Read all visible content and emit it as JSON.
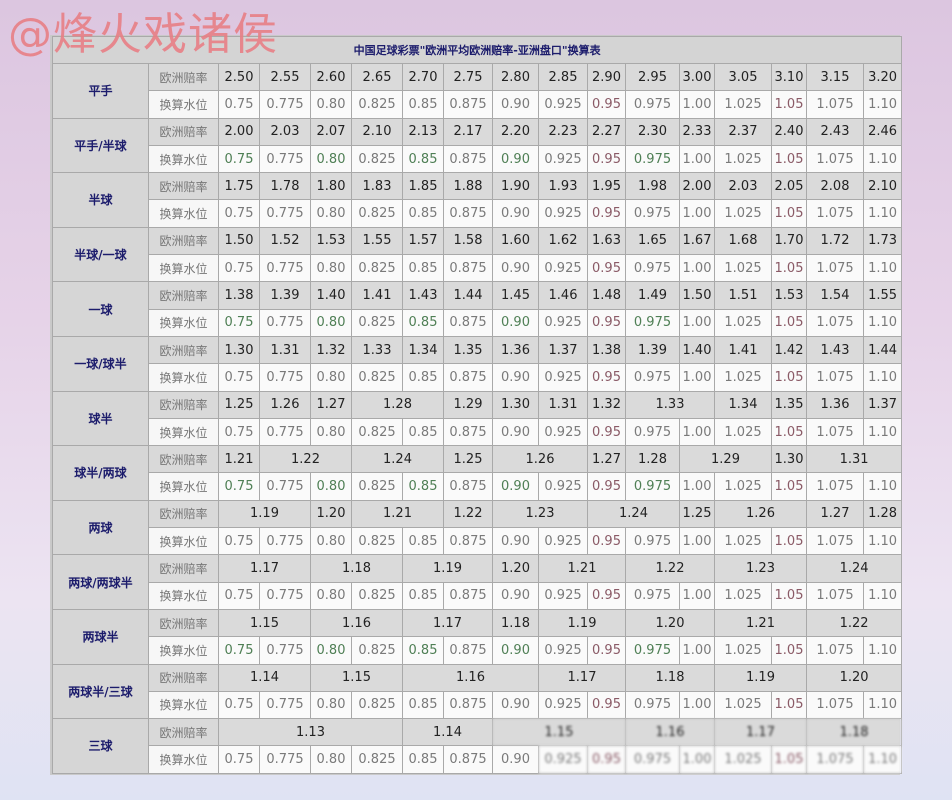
{
  "watermark": "@烽火戏诸侯",
  "title": "中国足球彩票\"欧洲平均欧洲赔率-亚洲盘口\"换算表",
  "row_labels": {
    "odds": "欧洲赔率",
    "water": "换算水位"
  },
  "groups": [
    {
      "label": "平手",
      "odds": [
        [
          "2.50",
          1
        ],
        [
          "2.55",
          1
        ],
        [
          "2.60",
          1
        ],
        [
          "2.65",
          1
        ],
        [
          "2.70",
          1
        ],
        [
          "2.75",
          1
        ],
        [
          "2.80",
          1
        ],
        [
          "2.85",
          1
        ],
        [
          "2.90",
          1
        ],
        [
          "2.95",
          1
        ],
        [
          "3.00",
          1
        ],
        [
          "3.05",
          1
        ],
        [
          "3.10",
          1
        ],
        [
          "3.15",
          1
        ],
        [
          "3.20",
          1
        ]
      ],
      "water": [
        "0.75",
        "0.775",
        "0.80",
        "0.825",
        "0.85",
        "0.875",
        "0.90",
        "0.925",
        "0.95",
        "0.975",
        "1.00",
        "1.025",
        "1.05",
        "1.075",
        "1.10"
      ]
    },
    {
      "label": "平手/半球",
      "odds": [
        [
          "2.00",
          1
        ],
        [
          "2.03",
          1
        ],
        [
          "2.07",
          1
        ],
        [
          "2.10",
          1
        ],
        [
          "2.13",
          1
        ],
        [
          "2.17",
          1
        ],
        [
          "2.20",
          1
        ],
        [
          "2.23",
          1
        ],
        [
          "2.27",
          1
        ],
        [
          "2.30",
          1
        ],
        [
          "2.33",
          1
        ],
        [
          "2.37",
          1
        ],
        [
          "2.40",
          1
        ],
        [
          "2.43",
          1
        ],
        [
          "2.46",
          1
        ]
      ],
      "water": [
        "0.75",
        "0.775",
        "0.80",
        "0.825",
        "0.85",
        "0.875",
        "0.90",
        "0.925",
        "0.95",
        "0.975",
        "1.00",
        "1.025",
        "1.05",
        "1.075",
        "1.10"
      ]
    },
    {
      "label": "半球",
      "odds": [
        [
          "1.75",
          1
        ],
        [
          "1.78",
          1
        ],
        [
          "1.80",
          1
        ],
        [
          "1.83",
          1
        ],
        [
          "1.85",
          1
        ],
        [
          "1.88",
          1
        ],
        [
          "1.90",
          1
        ],
        [
          "1.93",
          1
        ],
        [
          "1.95",
          1
        ],
        [
          "1.98",
          1
        ],
        [
          "2.00",
          1
        ],
        [
          "2.03",
          1
        ],
        [
          "2.05",
          1
        ],
        [
          "2.08",
          1
        ],
        [
          "2.10",
          1
        ]
      ],
      "water": [
        "0.75",
        "0.775",
        "0.80",
        "0.825",
        "0.85",
        "0.875",
        "0.90",
        "0.925",
        "0.95",
        "0.975",
        "1.00",
        "1.025",
        "1.05",
        "1.075",
        "1.10"
      ]
    },
    {
      "label": "半球/一球",
      "odds": [
        [
          "1.50",
          1
        ],
        [
          "1.52",
          1
        ],
        [
          "1.53",
          1
        ],
        [
          "1.55",
          1
        ],
        [
          "1.57",
          1
        ],
        [
          "1.58",
          1
        ],
        [
          "1.60",
          1
        ],
        [
          "1.62",
          1
        ],
        [
          "1.63",
          1
        ],
        [
          "1.65",
          1
        ],
        [
          "1.67",
          1
        ],
        [
          "1.68",
          1
        ],
        [
          "1.70",
          1
        ],
        [
          "1.72",
          1
        ],
        [
          "1.73",
          1
        ]
      ],
      "water": [
        "0.75",
        "0.775",
        "0.80",
        "0.825",
        "0.85",
        "0.875",
        "0.90",
        "0.925",
        "0.95",
        "0.975",
        "1.00",
        "1.025",
        "1.05",
        "1.075",
        "1.10"
      ]
    },
    {
      "label": "一球",
      "odds": [
        [
          "1.38",
          1
        ],
        [
          "1.39",
          1
        ],
        [
          "1.40",
          1
        ],
        [
          "1.41",
          1
        ],
        [
          "1.43",
          1
        ],
        [
          "1.44",
          1
        ],
        [
          "1.45",
          1
        ],
        [
          "1.46",
          1
        ],
        [
          "1.48",
          1
        ],
        [
          "1.49",
          1
        ],
        [
          "1.50",
          1
        ],
        [
          "1.51",
          1
        ],
        [
          "1.53",
          1
        ],
        [
          "1.54",
          1
        ],
        [
          "1.55",
          1
        ]
      ],
      "water": [
        "0.75",
        "0.775",
        "0.80",
        "0.825",
        "0.85",
        "0.875",
        "0.90",
        "0.925",
        "0.95",
        "0.975",
        "1.00",
        "1.025",
        "1.05",
        "1.075",
        "1.10"
      ]
    },
    {
      "label": "一球/球半",
      "odds": [
        [
          "1.30",
          1
        ],
        [
          "1.31",
          1
        ],
        [
          "1.32",
          1
        ],
        [
          "1.33",
          1
        ],
        [
          "1.34",
          1
        ],
        [
          "1.35",
          1
        ],
        [
          "1.36",
          1
        ],
        [
          "1.37",
          1
        ],
        [
          "1.38",
          1
        ],
        [
          "1.39",
          1
        ],
        [
          "1.40",
          1
        ],
        [
          "1.41",
          1
        ],
        [
          "1.42",
          1
        ],
        [
          "1.43",
          1
        ],
        [
          "1.44",
          1
        ]
      ],
      "water": [
        "0.75",
        "0.775",
        "0.80",
        "0.825",
        "0.85",
        "0.875",
        "0.90",
        "0.925",
        "0.95",
        "0.975",
        "1.00",
        "1.025",
        "1.05",
        "1.075",
        "1.10"
      ]
    },
    {
      "label": "球半",
      "odds": [
        [
          "1.25",
          1
        ],
        [
          "1.26",
          1
        ],
        [
          "1.27",
          1
        ],
        [
          "1.28",
          2
        ],
        [
          "1.29",
          1
        ],
        [
          "1.30",
          1
        ],
        [
          "1.31",
          1
        ],
        [
          "1.32",
          1
        ],
        [
          "1.33",
          2
        ],
        [
          "1.34",
          1
        ],
        [
          "1.35",
          1
        ],
        [
          "1.36",
          1
        ],
        [
          "1.37",
          1
        ]
      ],
      "water": [
        "0.75",
        "0.775",
        "0.80",
        "0.825",
        "0.85",
        "0.875",
        "0.90",
        "0.925",
        "0.95",
        "0.975",
        "1.00",
        "1.025",
        "1.05",
        "1.075",
        "1.10"
      ]
    },
    {
      "label": "球半/两球",
      "odds": [
        [
          "1.21",
          1
        ],
        [
          "1.22",
          2
        ],
        [
          "1.24",
          2
        ],
        [
          "1.25",
          1
        ],
        [
          "1.26",
          2
        ],
        [
          "1.27",
          1
        ],
        [
          "1.28",
          1
        ],
        [
          "1.29",
          2
        ],
        [
          "1.30",
          1
        ],
        [
          "1.31",
          2
        ]
      ],
      "water": [
        "0.75",
        "0.775",
        "0.80",
        "0.825",
        "0.85",
        "0.875",
        "0.90",
        "0.925",
        "0.95",
        "0.975",
        "1.00",
        "1.025",
        "1.05",
        "1.075",
        "1.10"
      ]
    },
    {
      "label": "两球",
      "odds": [
        [
          "1.19",
          2
        ],
        [
          "1.20",
          1
        ],
        [
          "1.21",
          2
        ],
        [
          "1.22",
          1
        ],
        [
          "1.23",
          2
        ],
        [
          "1.24",
          2
        ],
        [
          "1.25",
          1
        ],
        [
          "1.26",
          2
        ],
        [
          "1.27",
          1
        ],
        [
          "1.28",
          1
        ]
      ],
      "water": [
        "0.75",
        "0.775",
        "0.80",
        "0.825",
        "0.85",
        "0.875",
        "0.90",
        "0.925",
        "0.95",
        "0.975",
        "1.00",
        "1.025",
        "1.05",
        "1.075",
        "1.10"
      ]
    },
    {
      "label": "两球/两球半",
      "odds": [
        [
          "1.17",
          2
        ],
        [
          "1.18",
          2
        ],
        [
          "1.19",
          2
        ],
        [
          "1.20",
          1
        ],
        [
          "1.21",
          2
        ],
        [
          "1.22",
          2
        ],
        [
          "1.23",
          2
        ],
        [
          "1.24",
          2
        ]
      ],
      "water": [
        "0.75",
        "0.775",
        "0.80",
        "0.825",
        "0.85",
        "0.875",
        "0.90",
        "0.925",
        "0.95",
        "0.975",
        "1.00",
        "1.025",
        "1.05",
        "1.075",
        "1.10"
      ]
    },
    {
      "label": "两球半",
      "odds": [
        [
          "1.15",
          2
        ],
        [
          "1.16",
          2
        ],
        [
          "1.17",
          2
        ],
        [
          "1.18",
          1
        ],
        [
          "1.19",
          2
        ],
        [
          "1.20",
          2
        ],
        [
          "1.21",
          2
        ],
        [
          "1.22",
          2
        ]
      ],
      "water": [
        "0.75",
        "0.775",
        "0.80",
        "0.825",
        "0.85",
        "0.875",
        "0.90",
        "0.925",
        "0.95",
        "0.975",
        "1.00",
        "1.025",
        "1.05",
        "1.075",
        "1.10"
      ]
    },
    {
      "label": "两球半/三球",
      "odds": [
        [
          "1.14",
          2
        ],
        [
          "1.15",
          2
        ],
        [
          "1.16",
          3
        ],
        [
          "1.17",
          2
        ],
        [
          "1.18",
          2
        ],
        [
          "1.19",
          2
        ],
        [
          "1.20",
          2
        ]
      ],
      "water": [
        "0.75",
        "0.775",
        "0.80",
        "0.825",
        "0.85",
        "0.875",
        "0.90",
        "0.925",
        "0.95",
        "0.975",
        "1.00",
        "1.025",
        "1.05",
        "1.075",
        "1.10"
      ]
    },
    {
      "label": "三球",
      "odds": [
        [
          "1.13",
          4
        ],
        [
          "1.14",
          2
        ],
        [
          "1.15",
          3
        ],
        [
          "1.16",
          2
        ],
        [
          "1.17",
          2
        ],
        [
          "1.18",
          2
        ]
      ],
      "water": [
        "0.75",
        "0.775",
        "0.80",
        "0.825",
        "0.85",
        "0.875",
        "0.90",
        "0.925",
        "0.95",
        "0.975",
        "1.00",
        "1.025",
        "1.05",
        "1.075",
        "1.10"
      ]
    }
  ]
}
